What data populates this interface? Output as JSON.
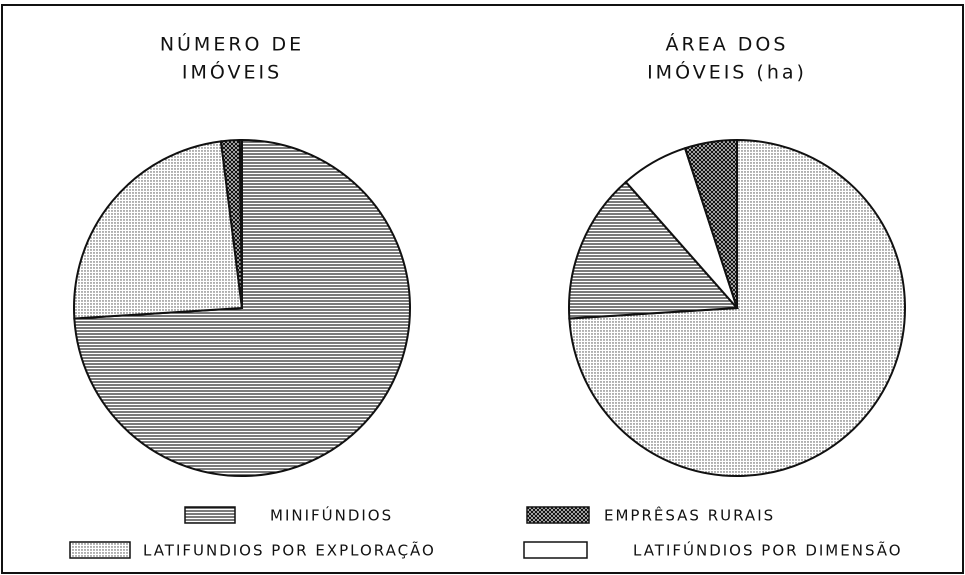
{
  "chart_data": [
    {
      "type": "pie",
      "title": [
        "NÚMERO DE",
        "IMÓVEIS"
      ],
      "values": [
        74,
        1.8,
        24,
        0.2
      ]
    },
    {
      "type": "pie",
      "title": [
        "ÁREA DOS",
        "IMÓVEIS (ha)"
      ],
      "values": [
        14.5,
        5,
        74,
        6.5
      ]
    }
  ],
  "legend": [
    {
      "name": "MINIFÚNDIOS",
      "pattern": "hlines"
    },
    {
      "name": "EMPRÊSAS RURAIS",
      "pattern": "cross"
    },
    {
      "name": "LATIFUNDIOS POR EXPLORAÇÃO",
      "pattern": "dots"
    },
    {
      "name": "LATIFÚNDIOS POR DIMENSÃO",
      "pattern": "none"
    }
  ]
}
